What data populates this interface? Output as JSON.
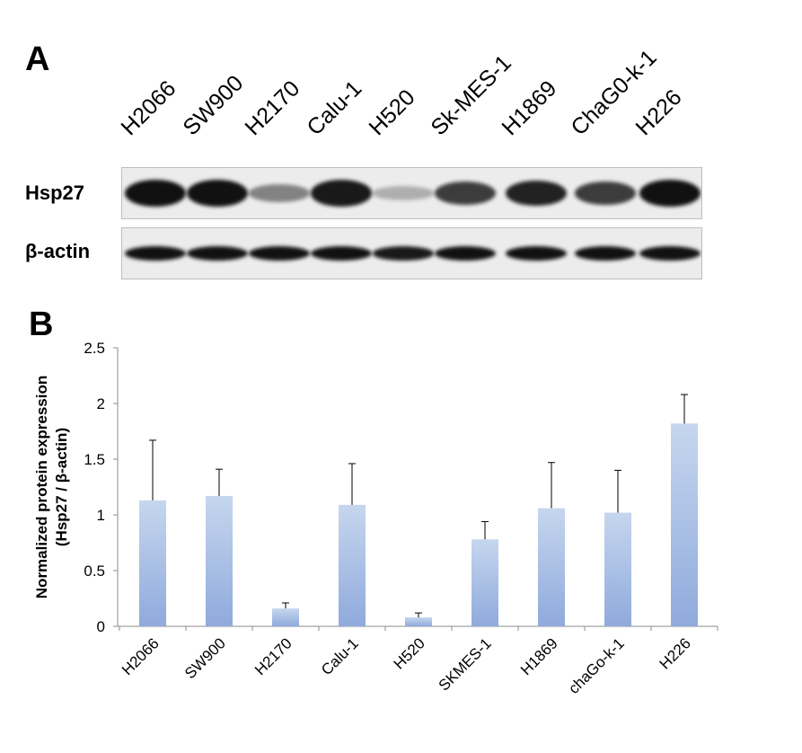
{
  "panel_a": {
    "letter": "A",
    "lanes": [
      "H2066",
      "SW900",
      "H2170",
      "Calu-1",
      "H520",
      "Sk-MES-1",
      "H1869",
      "ChaG0-k-1",
      "H226"
    ],
    "rows": [
      "Hsp27",
      "β-actin"
    ],
    "hsp27_band_intensity": [
      1.0,
      1.0,
      0.35,
      0.95,
      0.1,
      0.75,
      0.9,
      0.75,
      1.0
    ],
    "actin_band_intensity": [
      1.0,
      1.0,
      1.0,
      1.0,
      0.95,
      1.0,
      1.0,
      1.0,
      1.0
    ]
  },
  "panel_b": {
    "letter": "B"
  },
  "chart_data": {
    "type": "bar",
    "categories": [
      "H2066",
      "SW900",
      "H2170",
      "Calu-1",
      "H520",
      "SKMES-1",
      "H1869",
      "chaGo-k-1",
      "H226"
    ],
    "values": [
      1.13,
      1.17,
      0.16,
      1.09,
      0.08,
      0.78,
      1.06,
      1.02,
      1.82
    ],
    "error_upper": [
      0.54,
      0.24,
      0.05,
      0.37,
      0.04,
      0.16,
      0.41,
      0.38,
      0.26
    ],
    "ylabel_line1": "Normalized protein expression",
    "ylabel_line2": "(Hsp27 / β-actin)",
    "ylim": [
      0,
      2.5
    ],
    "yticks": [
      "0",
      "0.5",
      "1",
      "1.5",
      "2",
      "2.5"
    ],
    "ytick_values": [
      0,
      0.5,
      1,
      1.5,
      2,
      2.5
    ],
    "grid": false,
    "bar_color_top": "#c6d6ee",
    "bar_color_bottom": "#8faadc"
  }
}
